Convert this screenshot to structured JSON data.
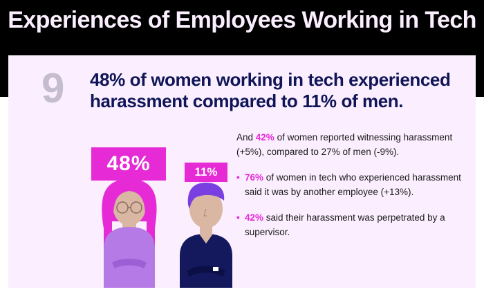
{
  "header": {
    "title": "Experiences of Employees Working in Tech"
  },
  "section": {
    "number": "9",
    "headline": "48% of women working in tech experienced harassment compared to 11% of men."
  },
  "badges": {
    "women": "48%",
    "men": "11%",
    "women_value": 48,
    "men_value": 11
  },
  "details": {
    "intro_prefix": "And ",
    "intro_highlight": "42%",
    "intro_suffix": " of women reported witnessing harassment (+5%), compared to 27% of men (-9%).",
    "bullets": [
      {
        "highlight": "76%",
        "text": " of women in tech who experienced harassment said it was by another employee (+13%)."
      },
      {
        "highlight": "42%",
        "text": " said their harassment was perpetrated by a supervisor."
      }
    ],
    "bullet_symbol": "•"
  },
  "colors": {
    "accent_magenta": "#e62bd6",
    "navy": "#0f1557",
    "panel_pink": "#fbeefe",
    "number_gray": "#c4bdd0",
    "woman_shirt": "#b57ae6",
    "man_shirt": "#14185c",
    "man_hair": "#7a3fe0",
    "skin": "#d9b7a2"
  },
  "icons": {
    "woman": "woman-figure-icon",
    "man": "man-figure-icon"
  }
}
